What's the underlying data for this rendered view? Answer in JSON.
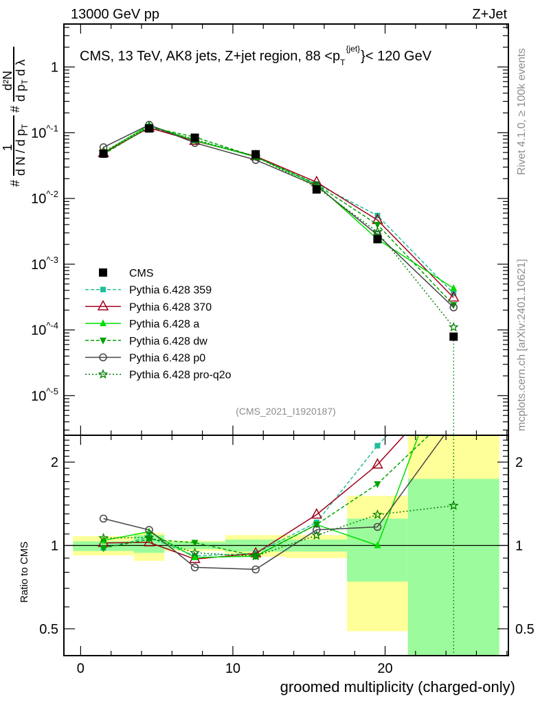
{
  "header": {
    "left": "13000 GeV pp",
    "right": "Z+Jet"
  },
  "side_labels": {
    "rivet": "Rivet 4.1.0, ≥ 100k events",
    "mcplots": "mcplots.cern.ch [arXiv:2401.10621]"
  },
  "analysis_id": "(CMS_2021_I1920187)",
  "chart_data": {
    "type": "line",
    "title": "CMS, 13 TeV, AK8 jets, Z+jet region, 88 <p_T^{jet}< 120 GeV",
    "title_parts": {
      "main": "CMS, 13 TeV, AK8 jets, Z+jet region, 88 <p",
      "sub": "T",
      "sup": "{jet}",
      "end": "}< 120 GeV"
    },
    "xlabel": "groomed multiplicity (charged-only)",
    "ylabel": {
      "hash1": "#",
      "num1": "1",
      "den1": "d N / d p",
      "den1_sub": "T",
      "hash2": "#",
      "num2": "d²N",
      "den2": "d p",
      "den2_sub": "T",
      "den2_end": " d λ"
    },
    "ratio_ylabel": "Ratio to CMS",
    "xlim": [
      -1.1,
      28.1
    ],
    "ylim": [
      2.5e-06,
      4.5
    ],
    "yscale": "log",
    "ratio_ylim": [
      0.4,
      2.5
    ],
    "x_ticks": [
      "0",
      "10",
      "20"
    ],
    "x_tick_values": [
      0,
      10,
      20
    ],
    "y_ticks": [
      "1",
      "10^-1",
      "10^-2",
      "10^-3",
      "10^-4",
      "10^-5"
    ],
    "y_tick_values": [
      1,
      0.1,
      0.01,
      0.001,
      0.0001,
      1e-05
    ],
    "ratio_ticks": [
      "2",
      "1",
      "0.5"
    ],
    "ratio_tick_values": [
      2,
      1,
      0.5
    ],
    "bin_edges": [
      -0.5,
      3.5,
      5.5,
      9.5,
      13.5,
      17.5,
      21.5,
      27.5
    ],
    "x": [
      1.5,
      4.5,
      7.5,
      11.5,
      15.5,
      19.5,
      24.5
    ],
    "data": {
      "name": "CMS",
      "color": "#000000",
      "values": [
        0.048,
        0.116,
        0.084,
        0.047,
        0.0137,
        0.0024,
        7.9e-05
      ]
    },
    "uncertainty_bands": {
      "stat_color": "#9cfb9c",
      "total_color": "#ffff99",
      "stat": [
        [
          0.955,
          1.035
        ],
        [
          0.94,
          1.09
        ],
        [
          0.97,
          1.03
        ],
        [
          0.95,
          1.05
        ],
        [
          0.95,
          1.05
        ],
        [
          0.74,
          1.25
        ],
        [
          0.01,
          1.74
        ]
      ],
      "total": [
        [
          0.92,
          1.08
        ],
        [
          0.88,
          1.11
        ],
        [
          0.955,
          1.04
        ],
        [
          0.91,
          1.09
        ],
        [
          0.9,
          1.09
        ],
        [
          0.49,
          1.51
        ],
        [
          0.01,
          3.0
        ]
      ]
    },
    "series": [
      {
        "name": "Pythia 6.428 359",
        "color": "#1fbf9a",
        "dash": "5,3",
        "marker": "square",
        "values": [
          0.047,
          0.124,
          0.077,
          0.044,
          0.0166,
          0.0055,
          0.00036
        ]
      },
      {
        "name": "Pythia 6.428 370",
        "color": "#a0001c",
        "dash": "",
        "marker": "triangle-open",
        "values": [
          0.049,
          0.119,
          0.075,
          0.044,
          0.0177,
          0.0047,
          0.00031
        ]
      },
      {
        "name": "Pythia 6.428 a",
        "color": "#00dd00",
        "dash": "",
        "marker": "triangle",
        "values": [
          0.05,
          0.13,
          0.076,
          0.043,
          0.0163,
          0.0024,
          0.00043
        ]
      },
      {
        "name": "Pythia 6.428 dw",
        "color": "#00a000",
        "dash": "5,3",
        "marker": "triangle-down",
        "values": [
          0.047,
          0.122,
          0.086,
          0.043,
          0.0163,
          0.004,
          0.00024
        ]
      },
      {
        "name": "Pythia 6.428 p0",
        "color": "#444444",
        "dash": "",
        "marker": "circle-open",
        "values": [
          0.06,
          0.132,
          0.07,
          0.0385,
          0.0156,
          0.0028,
          0.00022
        ]
      },
      {
        "name": "Pythia 6.428 pro-q2o",
        "color": "#008000",
        "dash": "2,3",
        "marker": "star-open",
        "values": [
          0.051,
          0.124,
          0.079,
          0.043,
          0.0149,
          0.0031,
          0.00011
        ]
      }
    ],
    "legend_position": "center-left"
  }
}
